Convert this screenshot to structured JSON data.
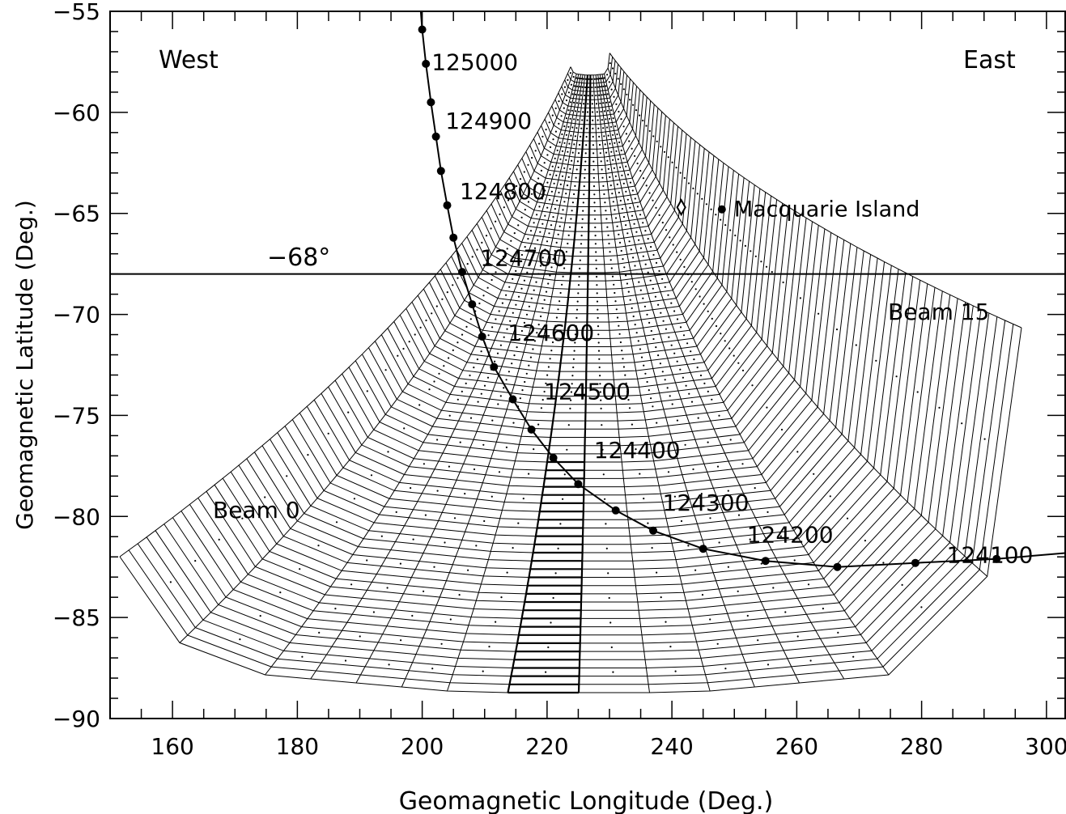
{
  "chart_data": {
    "type": "line",
    "title": "",
    "xlabel": "Geomagnetic Longitude (Deg.)",
    "ylabel": "Geomagnetic Latitude  (Deg.)",
    "xlim": [
      150,
      303
    ],
    "ylim": [
      -90,
      -55
    ],
    "xticks": [
      160,
      180,
      200,
      220,
      240,
      260,
      280,
      300
    ],
    "yticks": [
      -55,
      -60,
      -65,
      -70,
      -75,
      -80,
      -85,
      -90
    ],
    "annotations": {
      "west": "West",
      "east": "East",
      "lat_line_label": "−68°",
      "beam0": "Beam 0",
      "beam15": "Beam 15"
    },
    "reference_line": {
      "lat": -68
    },
    "site": {
      "name": "Macquarie Island",
      "lon": 248,
      "lat": -64.8,
      "marker_lon": 241.5,
      "marker_lat": -64.7
    },
    "radar_fov": {
      "apex": {
        "lon": 227,
        "lat": -56.2
      },
      "beams": 16,
      "range_gates": 75
    },
    "series": [
      {
        "name": "",
        "x": [
          200,
          200.6,
          201.4,
          202.2,
          203,
          204,
          205,
          206.4,
          208,
          209.6,
          211.5,
          214.5,
          217.5,
          221,
          225,
          231,
          237,
          245,
          255,
          266.5,
          279,
          292
        ],
        "y": [
          -55.9,
          -57.6,
          -59.5,
          -61.2,
          -62.9,
          -64.6,
          -66.2,
          -67.9,
          -69.5,
          -71.1,
          -72.6,
          -74.2,
          -75.7,
          -77.1,
          -78.4,
          -79.7,
          -80.7,
          -81.6,
          -82.2,
          -82.5,
          -82.3,
          -82.1
        ]
      }
    ],
    "orbit_labels": [
      {
        "text": "125000",
        "lon": 201.5,
        "lat": -57.9
      },
      {
        "text": "124900",
        "lon": 203.7,
        "lat": -60.8
      },
      {
        "text": "124800",
        "lon": 206.0,
        "lat": -64.3
      },
      {
        "text": "124700",
        "lon": 209.3,
        "lat": -67.6
      },
      {
        "text": "124600",
        "lon": 213.7,
        "lat": -71.3
      },
      {
        "text": "124500",
        "lon": 219.5,
        "lat": -74.2
      },
      {
        "text": "124400",
        "lon": 227.5,
        "lat": -77.1
      },
      {
        "text": "124300",
        "lon": 238.5,
        "lat": -79.7
      },
      {
        "text": "124200",
        "lon": 252.0,
        "lat": -81.3
      },
      {
        "text": "124100",
        "lon": 284.0,
        "lat": -82.3
      }
    ]
  }
}
